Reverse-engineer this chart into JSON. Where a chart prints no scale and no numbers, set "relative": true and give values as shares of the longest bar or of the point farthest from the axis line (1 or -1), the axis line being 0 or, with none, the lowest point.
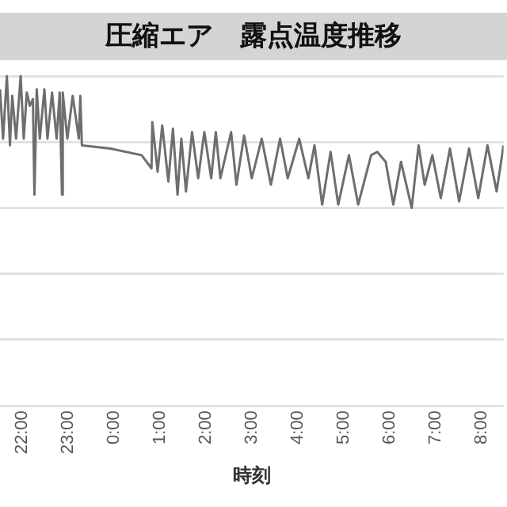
{
  "chart_data": {
    "type": "line",
    "title": "圧縮エア　露点温度推移",
    "xlabel": "時刻",
    "relative": true,
    "grid": "y",
    "marker": "none",
    "line_style": "solid",
    "legend": false,
    "xlim": [
      "2000-01-01T21:31",
      "2000-01-02T08:29"
    ],
    "xticks": [
      {
        "value": "2000-01-01T22:00",
        "label": "22:00"
      },
      {
        "value": "2000-01-01T23:00",
        "label": "23:00"
      },
      {
        "value": "2000-01-02T00:00",
        "label": "0:00"
      },
      {
        "value": "2000-01-02T01:00",
        "label": "1:00"
      },
      {
        "value": "2000-01-02T02:00",
        "label": "2:00"
      },
      {
        "value": "2000-01-02T03:00",
        "label": "3:00"
      },
      {
        "value": "2000-01-02T04:00",
        "label": "4:00"
      },
      {
        "value": "2000-01-02T05:00",
        "label": "5:00"
      },
      {
        "value": "2000-01-02T06:00",
        "label": "6:00"
      },
      {
        "value": "2000-01-02T07:00",
        "label": "7:00"
      },
      {
        "value": "2000-01-02T08:00",
        "label": "8:00"
      }
    ],
    "series": [
      {
        "color": "#6e6e6e",
        "x": [
          "2000-01-01T21:31",
          "2000-01-01T21:35",
          "2000-01-01T21:40",
          "2000-01-01T21:44",
          "2000-01-01T21:47",
          "2000-01-01T21:52",
          "2000-01-01T21:58",
          "2000-01-01T22:02",
          "2000-01-01T22:06",
          "2000-01-01T22:10",
          "2000-01-01T22:14",
          "2000-01-01T22:16",
          "2000-01-01T22:19",
          "2000-01-01T22:23",
          "2000-01-01T22:29",
          "2000-01-01T22:33",
          "2000-01-01T22:39",
          "2000-01-01T22:45",
          "2000-01-01T22:49",
          "2000-01-01T22:52",
          "2000-01-01T22:53",
          "2000-01-01T22:59",
          "2000-01-01T23:06",
          "2000-01-01T23:14",
          "2000-01-01T23:16",
          "2000-01-01T23:18",
          "2000-01-01T23:55",
          "2000-01-02T00:36",
          "2000-01-02T00:49",
          "2000-01-02T00:50",
          "2000-01-02T00:57",
          "2000-01-02T01:03",
          "2000-01-02T01:11",
          "2000-01-02T01:17",
          "2000-01-02T01:23",
          "2000-01-02T01:28",
          "2000-01-02T01:34",
          "2000-01-02T01:42",
          "2000-01-02T01:50",
          "2000-01-02T01:58",
          "2000-01-02T02:07",
          "2000-01-02T02:13",
          "2000-01-02T02:19",
          "2000-01-02T02:33",
          "2000-01-02T02:40",
          "2000-01-02T02:50",
          "2000-01-02T03:00",
          "2000-01-02T03:13",
          "2000-01-02T03:25",
          "2000-01-02T03:37",
          "2000-01-02T03:47",
          "2000-01-02T04:02",
          "2000-01-02T04:14",
          "2000-01-02T04:22",
          "2000-01-02T04:32",
          "2000-01-02T04:43",
          "2000-01-02T04:53",
          "2000-01-02T05:07",
          "2000-01-02T05:19",
          "2000-01-02T05:36",
          "2000-01-02T05:44",
          "2000-01-02T05:55",
          "2000-01-02T06:05",
          "2000-01-02T06:15",
          "2000-01-02T06:29",
          "2000-01-02T06:38",
          "2000-01-02T06:46",
          "2000-01-02T06:56",
          "2000-01-02T07:07",
          "2000-01-02T07:19",
          "2000-01-02T07:31",
          "2000-01-02T07:44",
          "2000-01-02T07:56",
          "2000-01-02T08:08",
          "2000-01-02T08:20",
          "2000-01-02T08:29"
        ],
        "values": [
          0.96,
          0.81,
          1.0,
          0.79,
          0.94,
          0.81,
          1.0,
          0.81,
          0.95,
          0.91,
          0.93,
          0.64,
          0.96,
          0.81,
          0.96,
          0.81,
          0.95,
          0.81,
          0.95,
          0.64,
          0.95,
          0.81,
          0.94,
          0.81,
          0.94,
          0.79,
          0.78,
          0.76,
          0.72,
          0.86,
          0.71,
          0.85,
          0.68,
          0.84,
          0.64,
          0.81,
          0.65,
          0.83,
          0.69,
          0.83,
          0.69,
          0.83,
          0.69,
          0.83,
          0.67,
          0.82,
          0.69,
          0.81,
          0.67,
          0.81,
          0.69,
          0.81,
          0.69,
          0.79,
          0.61,
          0.77,
          0.61,
          0.76,
          0.61,
          0.76,
          0.77,
          0.74,
          0.61,
          0.74,
          0.6,
          0.79,
          0.67,
          0.76,
          0.63,
          0.78,
          0.62,
          0.78,
          0.63,
          0.79,
          0.65,
          0.79
        ]
      }
    ]
  }
}
